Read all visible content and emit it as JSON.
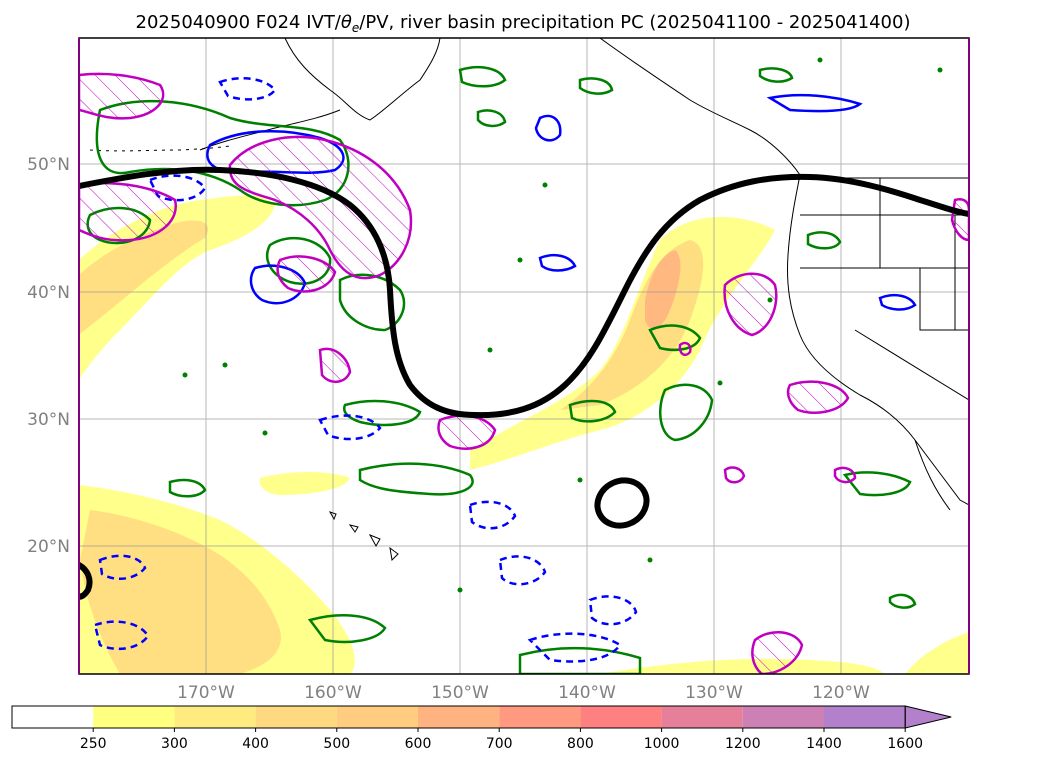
{
  "title": "2025040900 F024 IVT/θe/PV, river basin precipitation PC (2025041100 - 2025041400)",
  "title_parts": {
    "prefix": "2025040900 F024 IVT/",
    "theta": "θ",
    "theta_sub": "e",
    "suffix": "/PV, river basin precipitation PC (2025041100 - 2025041400)"
  },
  "map": {
    "lon_range": [
      -180,
      -110
    ],
    "lat_range": [
      10,
      60
    ],
    "lat_ticks": [
      {
        "value": 50,
        "label": "50°N"
      },
      {
        "value": 40,
        "label": "40°N"
      },
      {
        "value": 30,
        "label": "30°N"
      },
      {
        "value": 20,
        "label": "20°N"
      }
    ],
    "lon_ticks": [
      {
        "value": -170,
        "label": "170°W"
      },
      {
        "value": -160,
        "label": "160°W"
      },
      {
        "value": -150,
        "label": "150°W"
      },
      {
        "value": -140,
        "label": "140°W"
      },
      {
        "value": -130,
        "label": "130°W"
      },
      {
        "value": -120,
        "label": "120°W"
      }
    ],
    "gridlines": true
  },
  "colorbar": {
    "ticks": [
      "250",
      "300",
      "400",
      "500",
      "600",
      "700",
      "800",
      "1000",
      "1200",
      "1400",
      "1600"
    ],
    "colors": [
      "#ffffff",
      "#ffff80",
      "#ffeb80",
      "#ffd980",
      "#ffcc80",
      "#ffb380",
      "#ff9980",
      "#ff8080",
      "#e6809a",
      "#cc80b3",
      "#b380cc"
    ],
    "extend": "max"
  },
  "colors": {
    "ivt_fill_low": "#ffff80",
    "ivt_fill_mid": "#ffd980",
    "ivt_fill_high": "#ffb380",
    "theta_e_contour": "#008000",
    "pv_contour": "#0000ff",
    "precip_pc_contour": "#c000c0",
    "jet_line": "#000000",
    "coastline": "#000000",
    "frame": "#800080"
  }
}
